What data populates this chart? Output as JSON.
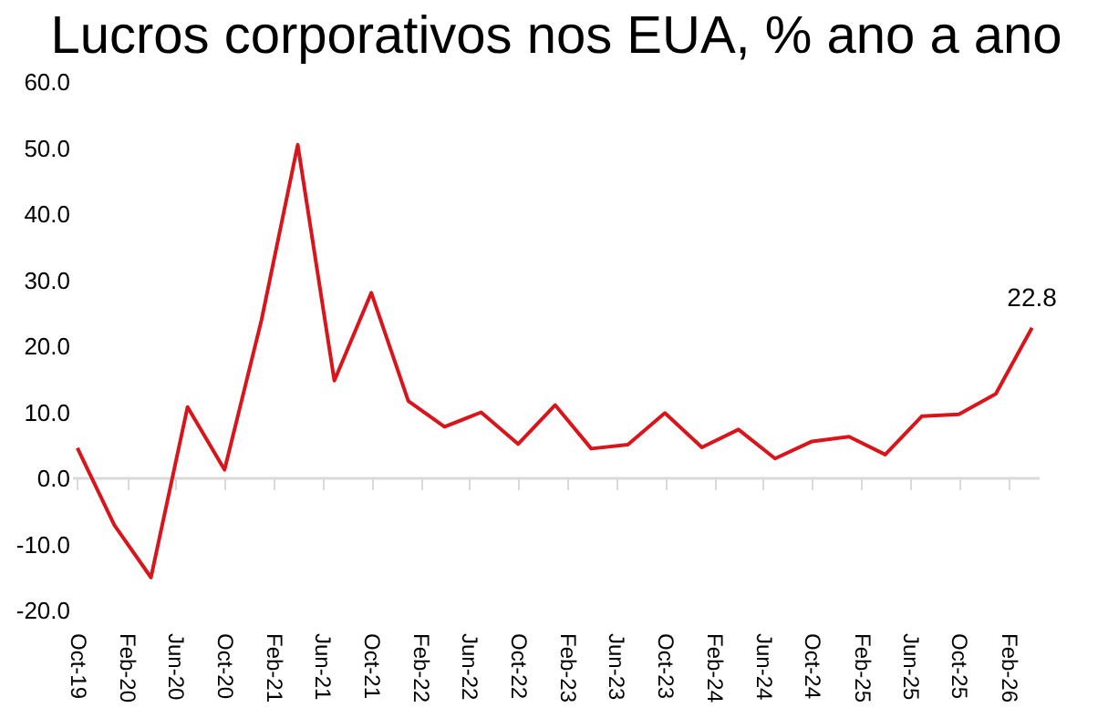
{
  "chart_data": {
    "type": "line",
    "title": "Lucros corporativos nos EUA, % ano a ano",
    "x": [
      "2019-10",
      "2020-01",
      "2020-04",
      "2020-07",
      "2020-10",
      "2021-01",
      "2021-04",
      "2021-07",
      "2021-10",
      "2022-01",
      "2022-04",
      "2022-07",
      "2022-10",
      "2023-01",
      "2023-04",
      "2023-07",
      "2023-10",
      "2024-01",
      "2024-04",
      "2024-07",
      "2024-10",
      "2025-01",
      "2025-04",
      "2025-07",
      "2025-10",
      "2026-01",
      "2026-04"
    ],
    "series": [
      {
        "color": "#d9151b",
        "values": [
          4.6,
          -7.1,
          -15.0,
          10.8,
          1.3,
          24.0,
          50.5,
          14.8,
          28.1,
          11.7,
          7.8,
          10.0,
          5.2,
          11.1,
          4.5,
          5.1,
          9.9,
          4.7,
          7.4,
          3.0,
          5.6,
          6.3,
          3.6,
          9.4,
          9.7,
          12.8,
          22.8
        ],
        "value_labels": [
          null,
          null,
          null,
          null,
          null,
          null,
          null,
          null,
          null,
          null,
          null,
          null,
          null,
          null,
          null,
          null,
          null,
          null,
          null,
          null,
          null,
          null,
          null,
          null,
          null,
          null,
          "22.8"
        ]
      }
    ],
    "xlim": [
      "2019-09-20",
      "2026-04-20"
    ],
    "xticks": [
      {
        "value": "2019-10",
        "label": "Oct-19"
      },
      {
        "value": "2020-02",
        "label": "Feb-20"
      },
      {
        "value": "2020-06",
        "label": "Jun-20"
      },
      {
        "value": "2020-10",
        "label": "Oct-20"
      },
      {
        "value": "2021-02",
        "label": "Feb-21"
      },
      {
        "value": "2021-06",
        "label": "Jun-21"
      },
      {
        "value": "2021-10",
        "label": "Oct-21"
      },
      {
        "value": "2022-02",
        "label": "Feb-22"
      },
      {
        "value": "2022-06",
        "label": "Jun-22"
      },
      {
        "value": "2022-10",
        "label": "Oct-22"
      },
      {
        "value": "2023-02",
        "label": "Feb-23"
      },
      {
        "value": "2023-06",
        "label": "Jun-23"
      },
      {
        "value": "2023-10",
        "label": "Oct-23"
      },
      {
        "value": "2024-02",
        "label": "Feb-24"
      },
      {
        "value": "2024-06",
        "label": "Jun-24"
      },
      {
        "value": "2024-10",
        "label": "Oct-24"
      },
      {
        "value": "2025-02",
        "label": "Feb-25"
      },
      {
        "value": "2025-06",
        "label": "Jun-25"
      },
      {
        "value": "2025-10",
        "label": "Oct-25"
      },
      {
        "value": "2026-02",
        "label": "Feb-26"
      }
    ],
    "ylim": [
      -20,
      60
    ],
    "yticks": [
      {
        "value": -20,
        "label": "-20.0"
      },
      {
        "value": -10,
        "label": "-10.0"
      },
      {
        "value": 0,
        "label": "0.0"
      },
      {
        "value": 10,
        "label": "10.0"
      },
      {
        "value": 20,
        "label": "20.0"
      },
      {
        "value": 30,
        "label": "30.0"
      },
      {
        "value": 40,
        "label": "40.0"
      },
      {
        "value": 50,
        "label": "50.0"
      },
      {
        "value": 60,
        "label": "60.0"
      }
    ],
    "ref_lines": [
      {
        "axis": "y",
        "value": 0,
        "color": "#d9d9d9"
      }
    ],
    "grid": false,
    "marker": "none",
    "line_style": "solid"
  }
}
